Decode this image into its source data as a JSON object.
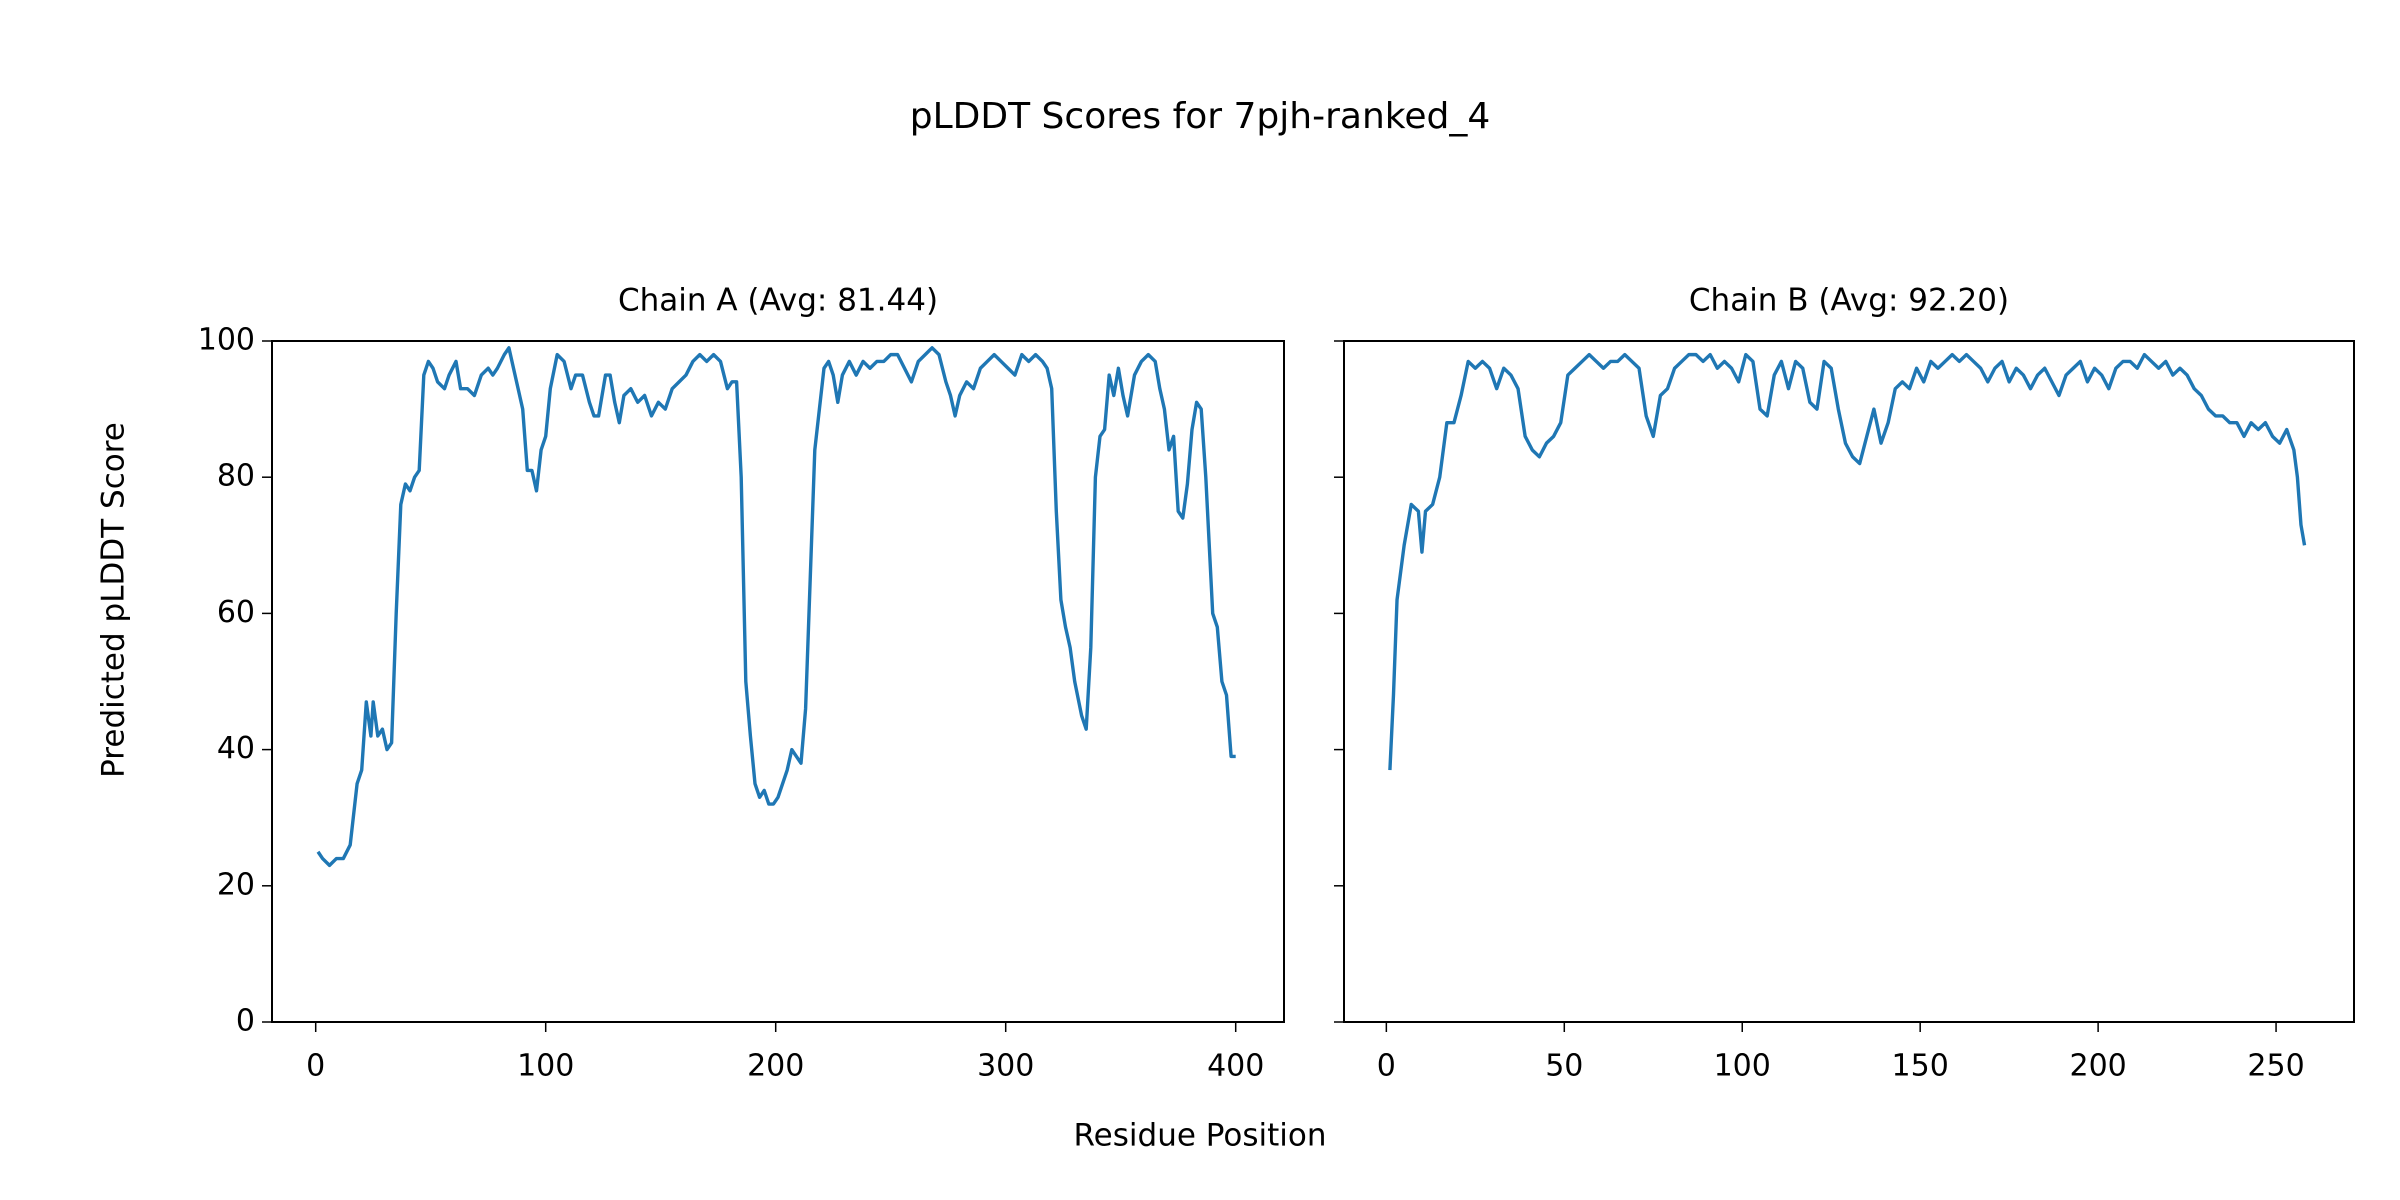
{
  "figure": {
    "title": "pLDDT Scores for 7pjh-ranked_4",
    "xlabel": "Residue Position",
    "ylabel": "Predicted pLDDT Score"
  },
  "chart_data": [
    {
      "type": "line",
      "title": "Chain A (Avg: 81.44)",
      "color": "#1f77b4",
      "xlim": [
        -19,
        421
      ],
      "ylim": [
        0,
        100
      ],
      "xticks": [
        0,
        100,
        200,
        300,
        400
      ],
      "yticks": [
        0,
        20,
        40,
        60,
        80,
        100
      ],
      "ytick_labels": true,
      "x": [
        1,
        3,
        6,
        9,
        12,
        15,
        18,
        20,
        22,
        24,
        25,
        27,
        29,
        31,
        33,
        35,
        37,
        39,
        41,
        43,
        45,
        47,
        49,
        51,
        53,
        56,
        58,
        61,
        63,
        66,
        69,
        72,
        75,
        77,
        79,
        82,
        84,
        86,
        88,
        90,
        92,
        94,
        96,
        98,
        100,
        102,
        105,
        108,
        111,
        113,
        116,
        119,
        121,
        123,
        126,
        128,
        130,
        132,
        134,
        137,
        140,
        143,
        146,
        149,
        152,
        155,
        158,
        161,
        164,
        167,
        170,
        173,
        176,
        179,
        181,
        183,
        185,
        187,
        189,
        191,
        193,
        195,
        197,
        199,
        201,
        203,
        205,
        207,
        209,
        211,
        213,
        215,
        217,
        219,
        221,
        223,
        225,
        227,
        229,
        232,
        235,
        238,
        241,
        244,
        247,
        250,
        253,
        256,
        259,
        262,
        265,
        268,
        271,
        274,
        276,
        278,
        280,
        283,
        286,
        289,
        292,
        295,
        298,
        301,
        304,
        307,
        310,
        313,
        316,
        318,
        320,
        322,
        324,
        326,
        328,
        330,
        333,
        335,
        337,
        339,
        341,
        343,
        345,
        347,
        349,
        351,
        353,
        356,
        359,
        362,
        365,
        367,
        369,
        371,
        373,
        375,
        377,
        379,
        381,
        383,
        385,
        387,
        390,
        392,
        394,
        396,
        398,
        400
      ],
      "values": [
        25,
        24,
        23,
        24,
        24,
        26,
        35,
        37,
        47,
        42,
        47,
        42,
        43,
        40,
        41,
        60,
        76,
        79,
        78,
        80,
        81,
        95,
        97,
        96,
        94,
        93,
        95,
        97,
        93,
        93,
        92,
        95,
        96,
        95,
        96,
        98,
        99,
        96,
        93,
        90,
        81,
        81,
        78,
        84,
        86,
        93,
        98,
        97,
        93,
        95,
        95,
        91,
        89,
        89,
        95,
        95,
        91,
        88,
        92,
        93,
        91,
        92,
        89,
        91,
        90,
        93,
        94,
        95,
        97,
        98,
        97,
        98,
        97,
        93,
        94,
        94,
        80,
        50,
        42,
        35,
        33,
        34,
        32,
        32,
        33,
        35,
        37,
        40,
        39,
        38,
        46,
        65,
        84,
        90,
        96,
        97,
        95,
        91,
        95,
        97,
        95,
        97,
        96,
        97,
        97,
        98,
        98,
        96,
        94,
        97,
        98,
        99,
        98,
        94,
        92,
        89,
        92,
        94,
        93,
        96,
        97,
        98,
        97,
        96,
        95,
        98,
        97,
        98,
        97,
        96,
        93,
        75,
        62,
        58,
        55,
        50,
        45,
        43,
        55,
        80,
        86,
        87,
        95,
        92,
        96,
        92,
        89,
        95,
        97,
        98,
        97,
        93,
        90,
        84,
        86,
        75,
        74,
        79,
        87,
        91,
        90,
        80,
        60,
        58,
        50,
        48,
        39,
        39
      ]
    },
    {
      "type": "line",
      "title": "Chain B (Avg: 92.20)",
      "color": "#1f77b4",
      "xlim": [
        -11.9,
        271.9
      ],
      "ylim": [
        0,
        100
      ],
      "xticks": [
        0,
        50,
        100,
        150,
        200,
        250
      ],
      "yticks": [
        0,
        20,
        40,
        60,
        80,
        100
      ],
      "ytick_labels": false,
      "x": [
        1,
        2,
        3,
        5,
        7,
        9,
        10,
        11,
        13,
        15,
        17,
        19,
        21,
        23,
        25,
        27,
        29,
        31,
        33,
        35,
        37,
        39,
        41,
        43,
        45,
        47,
        49,
        51,
        53,
        55,
        57,
        59,
        61,
        63,
        65,
        67,
        69,
        71,
        73,
        75,
        77,
        79,
        81,
        83,
        85,
        87,
        89,
        91,
        93,
        95,
        97,
        99,
        101,
        103,
        105,
        107,
        109,
        111,
        113,
        115,
        117,
        119,
        121,
        123,
        125,
        127,
        129,
        131,
        133,
        135,
        137,
        139,
        141,
        143,
        145,
        147,
        149,
        151,
        153,
        155,
        157,
        159,
        161,
        163,
        165,
        167,
        169,
        171,
        173,
        175,
        177,
        179,
        181,
        183,
        185,
        187,
        189,
        191,
        193,
        195,
        197,
        199,
        201,
        203,
        205,
        207,
        209,
        211,
        213,
        215,
        217,
        219,
        221,
        223,
        225,
        227,
        229,
        231,
        233,
        235,
        237,
        239,
        241,
        243,
        245,
        247,
        249,
        251,
        253,
        255,
        256,
        257,
        258
      ],
      "values": [
        37,
        48,
        62,
        70,
        76,
        75,
        69,
        75,
        76,
        80,
        88,
        88,
        92,
        97,
        96,
        97,
        96,
        93,
        96,
        95,
        93,
        86,
        84,
        83,
        85,
        86,
        88,
        95,
        96,
        97,
        98,
        97,
        96,
        97,
        97,
        98,
        97,
        96,
        89,
        86,
        92,
        93,
        96,
        97,
        98,
        98,
        97,
        98,
        96,
        97,
        96,
        94,
        98,
        97,
        90,
        89,
        95,
        97,
        93,
        97,
        96,
        91,
        90,
        97,
        96,
        90,
        85,
        83,
        82,
        86,
        90,
        85,
        88,
        93,
        94,
        93,
        96,
        94,
        97,
        96,
        97,
        98,
        97,
        98,
        97,
        96,
        94,
        96,
        97,
        94,
        96,
        95,
        93,
        95,
        96,
        94,
        92,
        95,
        96,
        97,
        94,
        96,
        95,
        93,
        96,
        97,
        97,
        96,
        98,
        97,
        96,
        97,
        95,
        96,
        95,
        93,
        92,
        90,
        89,
        89,
        88,
        88,
        86,
        88,
        87,
        88,
        86,
        85,
        87,
        84,
        80,
        73,
        70
      ]
    }
  ]
}
